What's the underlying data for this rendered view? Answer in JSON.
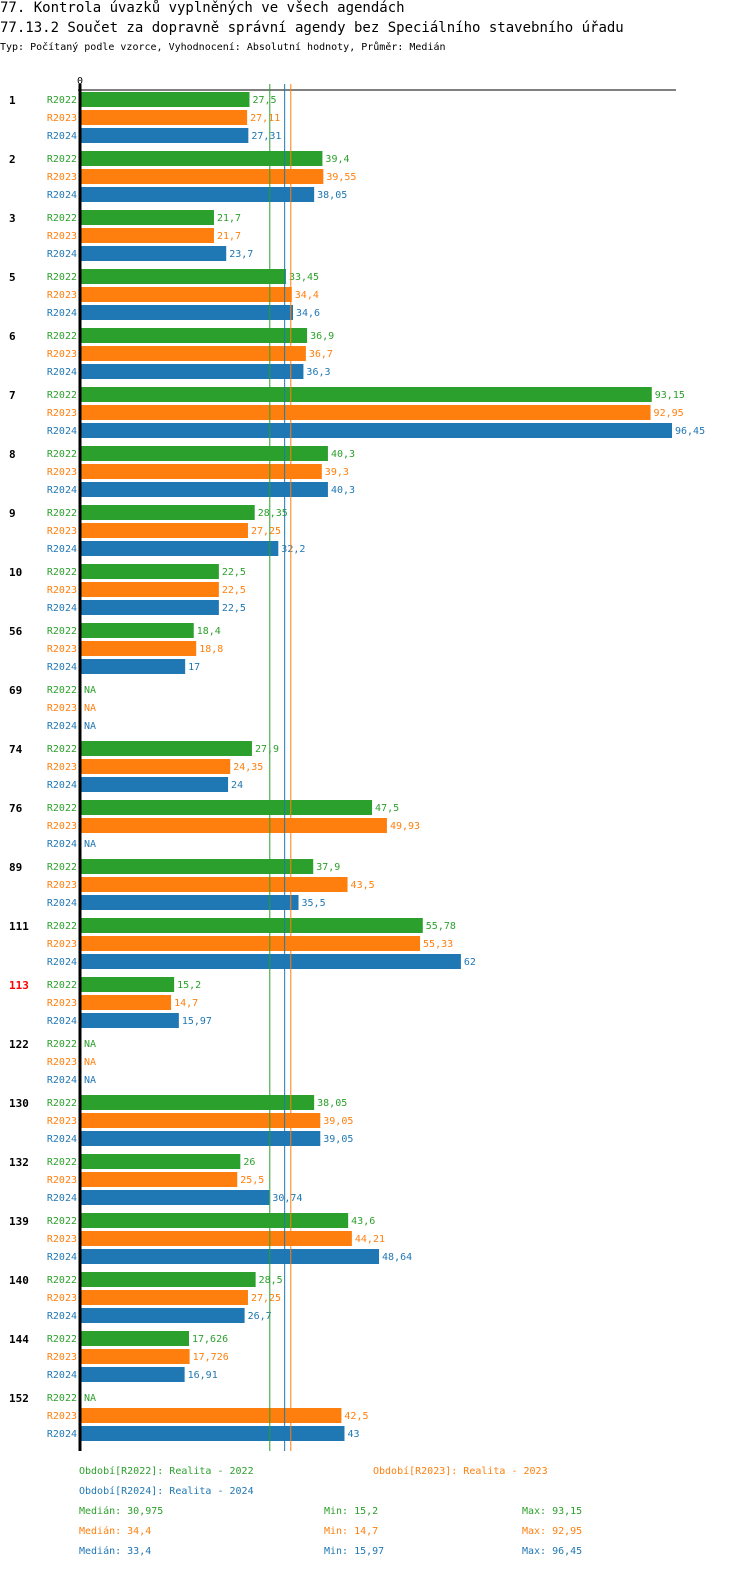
{
  "header": {
    "title": "77. Kontrola úvazků vyplněných ve všech agendách",
    "subtitle": "77.13.2 Součet za dopravně správní agendy bez Speciálního stavebního úřadu",
    "type_line": "Typ: Počítaný podle vzorce, Vyhodnocení: Absolutní hodnoty, Průměr: Medián"
  },
  "colors": {
    "R2022": "#2ca02c",
    "R2023": "#ff7f0e",
    "R2024": "#1f77b4",
    "highlight": "#ff0000",
    "axis": "#000000"
  },
  "chart_data": {
    "type": "bar",
    "orientation": "horizontal",
    "title": "77.13.2 Součet za dopravně správní agendy bez Speciálního stavebního úřadu",
    "xlabel": "",
    "ylabel": "",
    "x_tick_labels": [
      "0"
    ],
    "xlim": [
      0,
      96.45
    ],
    "grid": false,
    "series_names": [
      "R2022",
      "R2023",
      "R2024"
    ],
    "categories": [
      {
        "label": "1",
        "highlight": false,
        "values": [
          27.5,
          27.11,
          27.31
        ],
        "labels": [
          "27,5",
          "27,11",
          "27,31"
        ]
      },
      {
        "label": "2",
        "highlight": false,
        "values": [
          39.4,
          39.55,
          38.05
        ],
        "labels": [
          "39,4",
          "39,55",
          "38,05"
        ]
      },
      {
        "label": "3",
        "highlight": false,
        "values": [
          21.7,
          21.7,
          23.7
        ],
        "labels": [
          "21,7",
          "21,7",
          "23,7"
        ]
      },
      {
        "label": "5",
        "highlight": false,
        "values": [
          33.45,
          34.4,
          34.6
        ],
        "labels": [
          "33,45",
          "34,4",
          "34,6"
        ]
      },
      {
        "label": "6",
        "highlight": false,
        "values": [
          36.9,
          36.7,
          36.3
        ],
        "labels": [
          "36,9",
          "36,7",
          "36,3"
        ]
      },
      {
        "label": "7",
        "highlight": false,
        "values": [
          93.15,
          92.95,
          96.45
        ],
        "labels": [
          "93,15",
          "92,95",
          "96,45"
        ]
      },
      {
        "label": "8",
        "highlight": false,
        "values": [
          40.3,
          39.3,
          40.3
        ],
        "labels": [
          "40,3",
          "39,3",
          "40,3"
        ]
      },
      {
        "label": "9",
        "highlight": false,
        "values": [
          28.35,
          27.25,
          32.2
        ],
        "labels": [
          "28,35",
          "27,25",
          "32,2"
        ]
      },
      {
        "label": "10",
        "highlight": false,
        "values": [
          22.5,
          22.5,
          22.5
        ],
        "labels": [
          "22,5",
          "22,5",
          "22,5"
        ]
      },
      {
        "label": "56",
        "highlight": false,
        "values": [
          18.4,
          18.8,
          17
        ],
        "labels": [
          "18,4",
          "18,8",
          "17"
        ]
      },
      {
        "label": "69",
        "highlight": false,
        "values": [
          null,
          null,
          null
        ],
        "labels": [
          "NA",
          "NA",
          "NA"
        ]
      },
      {
        "label": "74",
        "highlight": false,
        "values": [
          27.9,
          24.35,
          24
        ],
        "labels": [
          "27,9",
          "24,35",
          "24"
        ]
      },
      {
        "label": "76",
        "highlight": false,
        "values": [
          47.5,
          49.93,
          null
        ],
        "labels": [
          "47,5",
          "49,93",
          "NA"
        ]
      },
      {
        "label": "89",
        "highlight": false,
        "values": [
          37.9,
          43.5,
          35.5
        ],
        "labels": [
          "37,9",
          "43,5",
          "35,5"
        ]
      },
      {
        "label": "111",
        "highlight": false,
        "values": [
          55.78,
          55.33,
          62
        ],
        "labels": [
          "55,78",
          "55,33",
          "62"
        ]
      },
      {
        "label": "113",
        "highlight": true,
        "values": [
          15.2,
          14.7,
          15.97
        ],
        "labels": [
          "15,2",
          "14,7",
          "15,97"
        ]
      },
      {
        "label": "122",
        "highlight": false,
        "values": [
          null,
          null,
          null
        ],
        "labels": [
          "NA",
          "NA",
          "NA"
        ]
      },
      {
        "label": "130",
        "highlight": false,
        "values": [
          38.05,
          39.05,
          39.05
        ],
        "labels": [
          "38,05",
          "39,05",
          "39,05"
        ]
      },
      {
        "label": "132",
        "highlight": false,
        "values": [
          26,
          25.5,
          30.74
        ],
        "labels": [
          "26",
          "25,5",
          "30,74"
        ]
      },
      {
        "label": "139",
        "highlight": false,
        "values": [
          43.6,
          44.21,
          48.64
        ],
        "labels": [
          "43,6",
          "44,21",
          "48,64"
        ]
      },
      {
        "label": "140",
        "highlight": false,
        "values": [
          28.5,
          27.25,
          26.7
        ],
        "labels": [
          "28,5",
          "27,25",
          "26,7"
        ]
      },
      {
        "label": "144",
        "highlight": false,
        "values": [
          17.626,
          17.726,
          16.91
        ],
        "labels": [
          "17,626",
          "17,726",
          "16,91"
        ]
      },
      {
        "label": "152",
        "highlight": false,
        "values": [
          null,
          42.5,
          43
        ],
        "labels": [
          "NA",
          "42,5",
          "43"
        ]
      }
    ],
    "median_lines": {
      "R2022": 30.975,
      "R2023": 34.4,
      "R2024": 33.4
    },
    "legend": [
      {
        "series": "R2022",
        "text": "Období[R2022]: Realita - 2022"
      },
      {
        "series": "R2023",
        "text": "Období[R2023]: Realita - 2023"
      },
      {
        "series": "R2024",
        "text": "Období[R2024]: Realita - 2024"
      }
    ],
    "stats": [
      {
        "series": "R2022",
        "median": "Medián: 30,975",
        "min": "Min: 15,2",
        "max": "Max: 93,15"
      },
      {
        "series": "R2023",
        "median": "Medián: 34,4",
        "min": "Min: 14,7",
        "max": "Max: 92,95"
      },
      {
        "series": "R2024",
        "median": "Medián: 33,4",
        "min": "Min: 15,97",
        "max": "Max: 96,45"
      }
    ]
  }
}
